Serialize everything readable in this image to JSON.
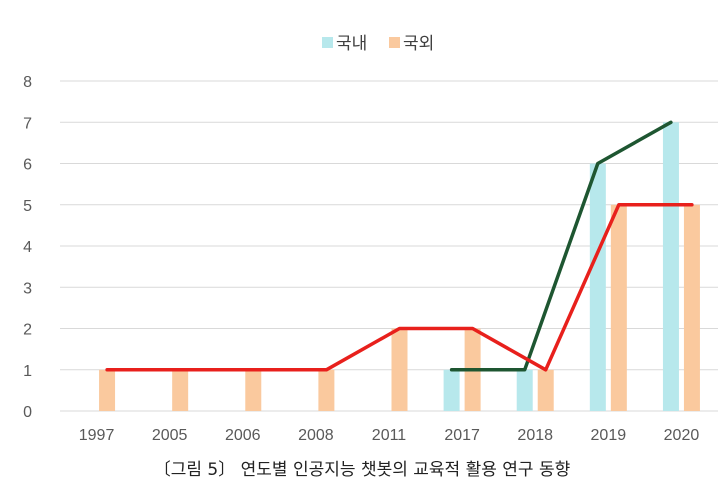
{
  "caption": "〔그림 5〕 연도별 인공지능 챗봇의 교육적 활용 연구 동향",
  "colors": {
    "domestic_bar": "#b7e8ec",
    "foreign_bar": "#fac99e",
    "domestic_line": "#1e5631",
    "foreign_line": "#e8201c",
    "grid": "#d9d9d9"
  },
  "chart_data": {
    "type": "bar",
    "title": "",
    "xlabel": "",
    "ylabel": "",
    "ylim": [
      0,
      8
    ],
    "yticks": [
      "0",
      "1",
      "2",
      "3",
      "4",
      "5",
      "6",
      "7",
      "8"
    ],
    "grid": true,
    "legend": "top-center",
    "categories": [
      "1997",
      "2005",
      "2006",
      "2008",
      "2011",
      "2017",
      "2018",
      "2019",
      "2020"
    ],
    "series": [
      {
        "name": "국내",
        "values": [
          0,
          0,
          0,
          0,
          0,
          1,
          1,
          6,
          7
        ],
        "line_values": [
          null,
          null,
          null,
          null,
          null,
          1,
          1,
          6,
          7
        ]
      },
      {
        "name": "국외",
        "values": [
          1,
          1,
          1,
          1,
          2,
          2,
          1,
          5,
          5
        ],
        "line_values": [
          1,
          1,
          1,
          1,
          2,
          2,
          1,
          5,
          5
        ]
      }
    ]
  }
}
